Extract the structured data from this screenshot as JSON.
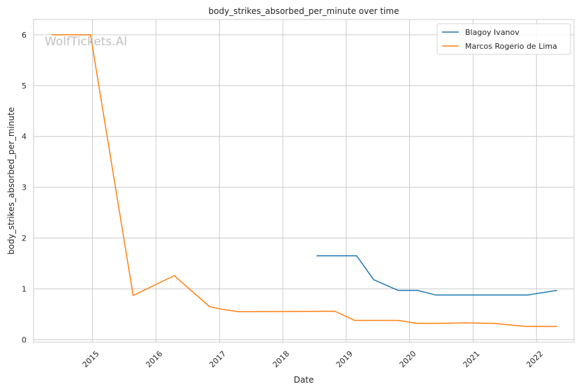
{
  "watermark": "WolfTickets.AI",
  "chart_data": {
    "type": "line",
    "title": "body_strikes_absorbed_per_minute over time",
    "xlabel": "Date",
    "ylabel": "body_strikes_absorbed_per_minute",
    "x_ticks": [
      "2015",
      "2016",
      "2017",
      "2018",
      "2019",
      "2020",
      "2021",
      "2022"
    ],
    "y_ticks": [
      0,
      1,
      2,
      3,
      4,
      5,
      6
    ],
    "xlim": [
      "2014-01-26",
      "2022-08-05"
    ],
    "ylim": [
      -0.05,
      6.3
    ],
    "grid": true,
    "legend_position": "top-right",
    "series": [
      {
        "name": "Blagoy Ivanov",
        "color": "#1f77b4",
        "points": [
          [
            "2018-07-14",
            1.65
          ],
          [
            "2019-03-02",
            1.65
          ],
          [
            "2019-06-08",
            1.18
          ],
          [
            "2019-10-26",
            0.97
          ],
          [
            "2020-02-15",
            0.97
          ],
          [
            "2020-05-30",
            0.88
          ],
          [
            "2021-11-13",
            0.88
          ],
          [
            "2022-04-30",
            0.97
          ]
        ]
      },
      {
        "name": "Marcos Rogerio de Lima",
        "color": "#ff7f0e",
        "points": [
          [
            "2014-05-10",
            6.0
          ],
          [
            "2014-12-20",
            6.0
          ],
          [
            "2015-08-23",
            0.87
          ],
          [
            "2016-04-16",
            1.26
          ],
          [
            "2016-11-05",
            0.65
          ],
          [
            "2017-01-28",
            0.59
          ],
          [
            "2017-04-22",
            0.55
          ],
          [
            "2018-10-27",
            0.56
          ],
          [
            "2019-02-17",
            0.38
          ],
          [
            "2019-10-26",
            0.38
          ],
          [
            "2020-02-15",
            0.32
          ],
          [
            "2020-05-30",
            0.32
          ],
          [
            "2020-11-21",
            0.33
          ],
          [
            "2021-05-01",
            0.32
          ],
          [
            "2021-10-30",
            0.26
          ],
          [
            "2022-04-30",
            0.26
          ]
        ]
      }
    ]
  }
}
